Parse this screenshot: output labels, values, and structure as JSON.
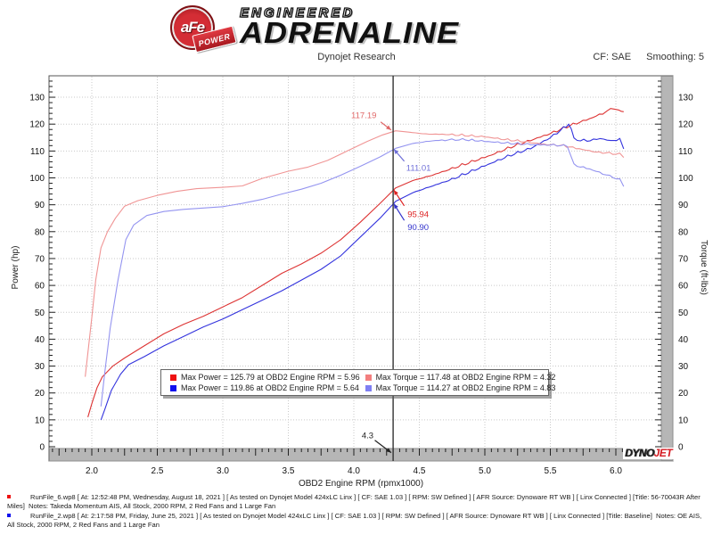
{
  "header": {
    "badge_text": "aFe",
    "badge_sub": "POWER",
    "brand_line1": "ENGINEERED",
    "brand_line2": "ADRENALINE",
    "title": "Dynojet Research",
    "cf_label": "CF: SAE",
    "smoothing_label": "Smoothing: 5"
  },
  "branding_footer": {
    "dyno": "DYNO",
    "jet": "JET"
  },
  "legend": {
    "items": [
      {
        "color": "#ee1111",
        "label": "Max Power = 125.79 at OBD2 Engine RPM = 5.96"
      },
      {
        "color": "#f37f7f",
        "label": "Max Torque = 117.48 at OBD2 Engine RPM = 4.32"
      },
      {
        "color": "#1111ee",
        "label": "Max Power = 119.86 at OBD2 Engine RPM = 5.64"
      },
      {
        "color": "#7f7ff3",
        "label": "Max Torque = 114.27 at OBD2 Engine RPM = 4.83"
      }
    ]
  },
  "footer": {
    "runs": [
      {
        "bullet_color": "#ee1111",
        "text": "RunFile_6.wp8 [ At: 12:52:48 PM, Wednesday, August 18, 2021 ] [ As tested on Dynojet Model 424xLC Linx ] [ CF: SAE 1.03 ] [ RPM: SW Defined ] [ AFR Source: Dynoware RT WB ] [ Linx Connected ] [Title: 56-70043R After Miles]  Notes: Takeda Momentum AIS, All Stock, 2000 RPM, 2 Red Fans and 1 Large Fan"
      },
      {
        "bullet_color": "#1111ee",
        "text": "RunFile_2.wp8 [ At: 2:17:58 PM, Friday, June 25, 2021 ] [ As tested on Dynojet Model 424xLC Linx ] [ CF: SAE 1.03 ] [ RPM: SW Defined ] [ AFR Source: Dynoware RT WB ] [ Linx Connected ] [Title: Baseline]  Notes: OE AIS, All Stock, 2000 RPM, 2 Red Fans and 1 Large Fan"
      }
    ]
  },
  "chart_data": {
    "type": "line",
    "xlabel": "OBD2 Engine RPM (rpmx1000)",
    "ylabel_left": "Power (hp)",
    "ylabel_right": "Torque (ft-lbs)",
    "xlim": [
      1.67,
      6.44
    ],
    "ylim": [
      0,
      138
    ],
    "x_ticks": [
      "2.0",
      "2.5",
      "3.0",
      "3.5",
      "4.0",
      "4.5",
      "5.0",
      "5.5",
      "6.0"
    ],
    "y_ticks": [
      0,
      10,
      20,
      30,
      40,
      50,
      60,
      70,
      80,
      90,
      100,
      110,
      120,
      130
    ],
    "grid": "dotted",
    "cursor": {
      "rpm": 4.3,
      "label": "4.3"
    },
    "series": [
      {
        "name": "power-after",
        "legend": "Max Power = 125.79 at OBD2 Engine RPM = 5.96",
        "color": "#dd3333",
        "noise": 0.55,
        "points": [
          [
            1.97,
            11
          ],
          [
            2.0,
            16
          ],
          [
            2.04,
            22
          ],
          [
            2.08,
            26
          ],
          [
            2.16,
            30
          ],
          [
            2.25,
            33
          ],
          [
            2.4,
            37.5
          ],
          [
            2.55,
            42
          ],
          [
            2.7,
            45.5
          ],
          [
            2.85,
            48.5
          ],
          [
            3.0,
            52
          ],
          [
            3.15,
            55.5
          ],
          [
            3.3,
            60
          ],
          [
            3.45,
            64.5
          ],
          [
            3.6,
            68
          ],
          [
            3.75,
            72
          ],
          [
            3.9,
            77
          ],
          [
            4.05,
            83.5
          ],
          [
            4.2,
            90.5
          ],
          [
            4.32,
            96.3
          ],
          [
            4.45,
            99
          ],
          [
            4.6,
            101
          ],
          [
            4.75,
            103.5
          ],
          [
            4.9,
            106
          ],
          [
            5.05,
            108.5
          ],
          [
            5.2,
            111.5
          ],
          [
            5.35,
            114
          ],
          [
            5.5,
            116.5
          ],
          [
            5.65,
            119.5
          ],
          [
            5.8,
            122
          ],
          [
            5.9,
            124
          ],
          [
            5.96,
            125.8
          ],
          [
            6.02,
            125
          ],
          [
            6.06,
            124.6
          ]
        ]
      },
      {
        "name": "power-baseline",
        "legend": "Max Power = 119.86 at OBD2 Engine RPM = 5.64",
        "color": "#3333dd",
        "noise": 0.55,
        "points": [
          [
            2.07,
            10
          ],
          [
            2.1,
            14
          ],
          [
            2.15,
            21
          ],
          [
            2.22,
            27
          ],
          [
            2.28,
            30.5
          ],
          [
            2.4,
            33.5
          ],
          [
            2.55,
            37.5
          ],
          [
            2.7,
            41
          ],
          [
            2.85,
            44.5
          ],
          [
            3.0,
            47.5
          ],
          [
            3.15,
            51
          ],
          [
            3.3,
            54.5
          ],
          [
            3.45,
            58
          ],
          [
            3.6,
            62
          ],
          [
            3.75,
            66
          ],
          [
            3.9,
            71
          ],
          [
            4.05,
            78
          ],
          [
            4.2,
            85
          ],
          [
            4.32,
            91.3
          ],
          [
            4.45,
            94.5
          ],
          [
            4.6,
            97
          ],
          [
            4.75,
            99.5
          ],
          [
            4.9,
            102.5
          ],
          [
            5.05,
            105.5
          ],
          [
            5.2,
            108.5
          ],
          [
            5.35,
            111
          ],
          [
            5.5,
            115
          ],
          [
            5.6,
            118.5
          ],
          [
            5.64,
            119.9
          ],
          [
            5.66,
            118.5
          ],
          [
            5.68,
            114.3
          ],
          [
            5.78,
            113.8
          ],
          [
            5.88,
            114.6
          ],
          [
            5.96,
            113.9
          ],
          [
            6.03,
            114.2
          ],
          [
            6.06,
            110.8
          ]
        ]
      },
      {
        "name": "torque-after",
        "legend": "Max Torque = 117.48 at OBD2 Engine RPM = 4.32",
        "color": "#f09494",
        "noise": 0.45,
        "points": [
          [
            1.95,
            26
          ],
          [
            2.0,
            48
          ],
          [
            2.03,
            62
          ],
          [
            2.07,
            74
          ],
          [
            2.12,
            80
          ],
          [
            2.18,
            85
          ],
          [
            2.25,
            89.5
          ],
          [
            2.35,
            91.5
          ],
          [
            2.5,
            93.5
          ],
          [
            2.65,
            95
          ],
          [
            2.8,
            96
          ],
          [
            3.0,
            96.5
          ],
          [
            3.15,
            97
          ],
          [
            3.3,
            99.8
          ],
          [
            3.5,
            102.5
          ],
          [
            3.65,
            104
          ],
          [
            3.8,
            106.5
          ],
          [
            3.95,
            110
          ],
          [
            4.1,
            113.5
          ],
          [
            4.22,
            116
          ],
          [
            4.32,
            117.5
          ],
          [
            4.42,
            117
          ],
          [
            4.55,
            116.3
          ],
          [
            4.7,
            116.2
          ],
          [
            4.85,
            115.8
          ],
          [
            5.0,
            115.3
          ],
          [
            5.15,
            114.3
          ],
          [
            5.3,
            113.5
          ],
          [
            5.45,
            112.5
          ],
          [
            5.6,
            112
          ],
          [
            5.72,
            110.8
          ],
          [
            5.85,
            109.6
          ],
          [
            5.95,
            109.2
          ],
          [
            6.03,
            108.8
          ],
          [
            6.06,
            107.6
          ]
        ]
      },
      {
        "name": "torque-baseline",
        "legend": "Max Torque = 114.27 at OBD2 Engine RPM = 4.83",
        "color": "#9494f0",
        "noise": 0.45,
        "points": [
          [
            2.07,
            15
          ],
          [
            2.1,
            28
          ],
          [
            2.14,
            44
          ],
          [
            2.2,
            62
          ],
          [
            2.26,
            77
          ],
          [
            2.32,
            82.5
          ],
          [
            2.42,
            86
          ],
          [
            2.55,
            87.5
          ],
          [
            2.7,
            88.3
          ],
          [
            2.85,
            88.8
          ],
          [
            3.0,
            89.3
          ],
          [
            3.15,
            90.5
          ],
          [
            3.3,
            92
          ],
          [
            3.45,
            94
          ],
          [
            3.6,
            95.8
          ],
          [
            3.75,
            98
          ],
          [
            3.9,
            101
          ],
          [
            4.05,
            104.3
          ],
          [
            4.2,
            107.8
          ],
          [
            4.32,
            111
          ],
          [
            4.45,
            112.8
          ],
          [
            4.6,
            113.8
          ],
          [
            4.72,
            114.1
          ],
          [
            4.83,
            114.3
          ],
          [
            4.95,
            113.8
          ],
          [
            5.1,
            113.2
          ],
          [
            5.25,
            112.7
          ],
          [
            5.4,
            112.3
          ],
          [
            5.55,
            112.2
          ],
          [
            5.63,
            111.8
          ],
          [
            5.66,
            108
          ],
          [
            5.68,
            104.8
          ],
          [
            5.8,
            103.3
          ],
          [
            5.9,
            101.6
          ],
          [
            5.98,
            100.2
          ],
          [
            6.03,
            99.3
          ],
          [
            6.06,
            96.8
          ]
        ]
      }
    ],
    "annotations": [
      {
        "text": "117.19",
        "color": "#e06868",
        "label": [
          3.98,
          122.2
        ],
        "from": [
          4.205,
          120.8
        ],
        "to": [
          4.285,
          117.8
        ]
      },
      {
        "text": "111.01",
        "color": "#7070d8",
        "label": [
          4.4,
          102.6
        ],
        "from": [
          4.385,
          106.2
        ],
        "to": [
          4.305,
          110.7
        ]
      },
      {
        "text": "95.94",
        "color": "#dd2222",
        "label": [
          4.41,
          85.4
        ],
        "from": [
          4.385,
          89.6
        ],
        "to": [
          4.305,
          95.5
        ]
      },
      {
        "text": "90.90",
        "color": "#3333cc",
        "label": [
          4.41,
          80.6
        ],
        "from": [
          4.385,
          84.2
        ],
        "to": [
          4.305,
          90.4
        ]
      },
      {
        "text": "4.3",
        "color": "#222222",
        "label": [
          4.06,
          3.2
        ],
        "from": [
          4.16,
          2.4
        ],
        "to": [
          4.285,
          -2.2
        ]
      }
    ]
  }
}
